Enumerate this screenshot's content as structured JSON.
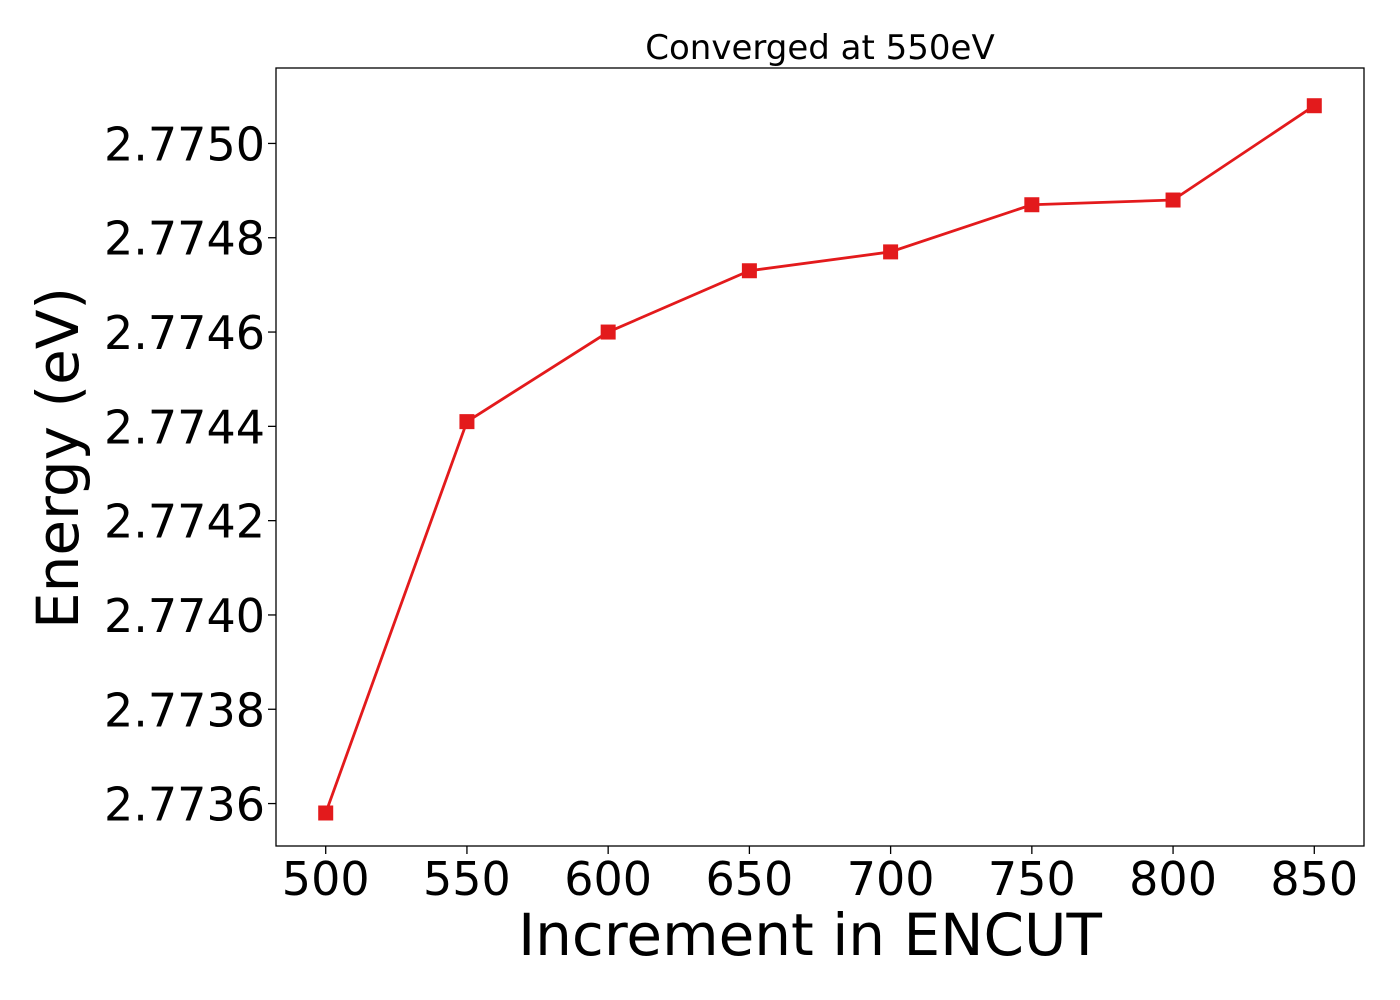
{
  "chart_data": {
    "type": "line",
    "title": "Converged at 550eV",
    "xlabel": "Increment in ENCUT",
    "ylabel": "Energy (eV)",
    "x": [
      500,
      550,
      600,
      650,
      700,
      750,
      800,
      850
    ],
    "series": [
      {
        "values": [
          2.77358,
          2.77441,
          2.7746,
          2.77473,
          2.77477,
          2.77487,
          2.77488,
          2.77508
        ],
        "color": "#e31a1c",
        "marker": "square"
      }
    ],
    "xticks": [
      500,
      550,
      600,
      650,
      700,
      750,
      800,
      850
    ],
    "xtick_labels": [
      "500",
      "550",
      "600",
      "650",
      "700",
      "750",
      "800",
      "850"
    ],
    "yticks": [
      2.7736,
      2.7738,
      2.774,
      2.7742,
      2.7744,
      2.7746,
      2.7748,
      2.775
    ],
    "ytick_labels": [
      "2.7736",
      "2.7738",
      "2.7740",
      "2.7742",
      "2.7744",
      "2.7746",
      "2.7748",
      "2.7750"
    ],
    "xlim": [
      482.4,
      867.6
    ],
    "ylim": [
      2.77351,
      2.77516
    ],
    "grid": false,
    "legend": false
  }
}
